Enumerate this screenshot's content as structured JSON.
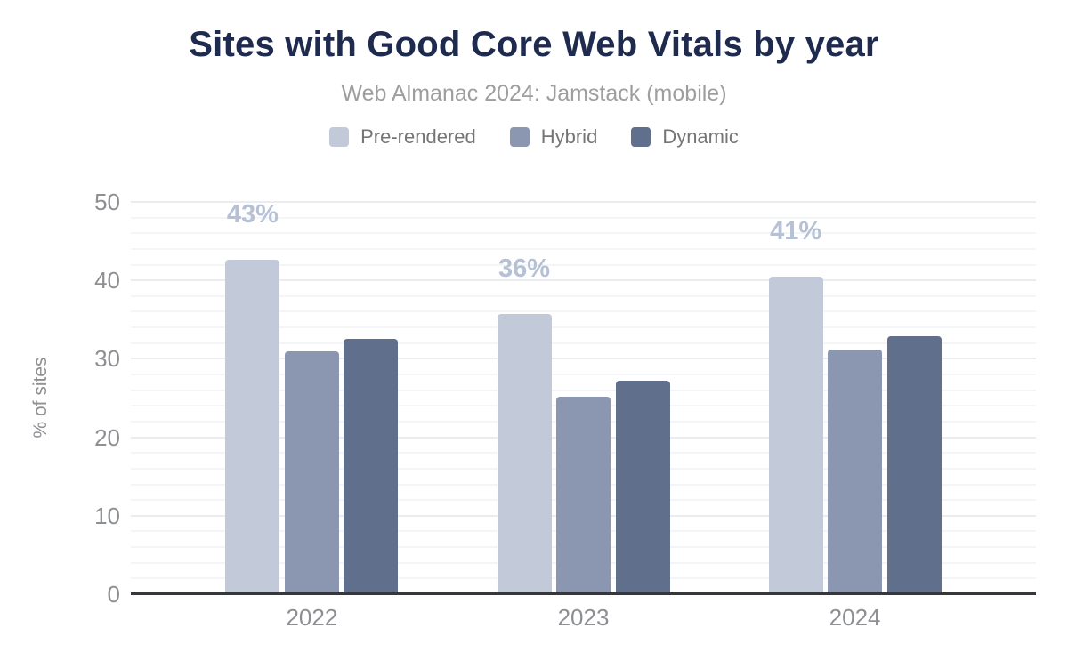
{
  "chart_data": {
    "type": "bar",
    "title": "Sites with Good Core Web Vitals by year",
    "subtitle": "Web Almanac 2024: Jamstack (mobile)",
    "ylabel": "% of sites",
    "xlabel": "",
    "ylim": [
      0,
      50
    ],
    "yticks": [
      0,
      10,
      20,
      30,
      40,
      50
    ],
    "grid": {
      "orientation": "horizontal",
      "minor_step": 2,
      "major_step": 10
    },
    "legend_position": "top",
    "categories": [
      "2022",
      "2023",
      "2024"
    ],
    "series": [
      {
        "name": "Pre-rendered",
        "color": "#c2cad9",
        "values": [
          42.6,
          35.7,
          40.5
        ],
        "data_labels": [
          "43%",
          "36%",
          "41%"
        ],
        "label_color": "#b6c1d6"
      },
      {
        "name": "Hybrid",
        "color": "#8b97b0",
        "values": [
          31.0,
          25.2,
          31.2
        ]
      },
      {
        "name": "Dynamic",
        "color": "#5f6f8c",
        "values": [
          32.5,
          27.2,
          32.9
        ]
      }
    ]
  },
  "styles": {
    "background": "#ffffff",
    "title_color": "#1e2b4e",
    "subtitle_color": "#9e9e9e",
    "legend_text_color": "#757575",
    "axis_text_color": "#8d8f92",
    "axis_line_color": "#36373b",
    "grid_major_color": "#eaecef",
    "grid_minor_color": "#f4f5f7"
  }
}
